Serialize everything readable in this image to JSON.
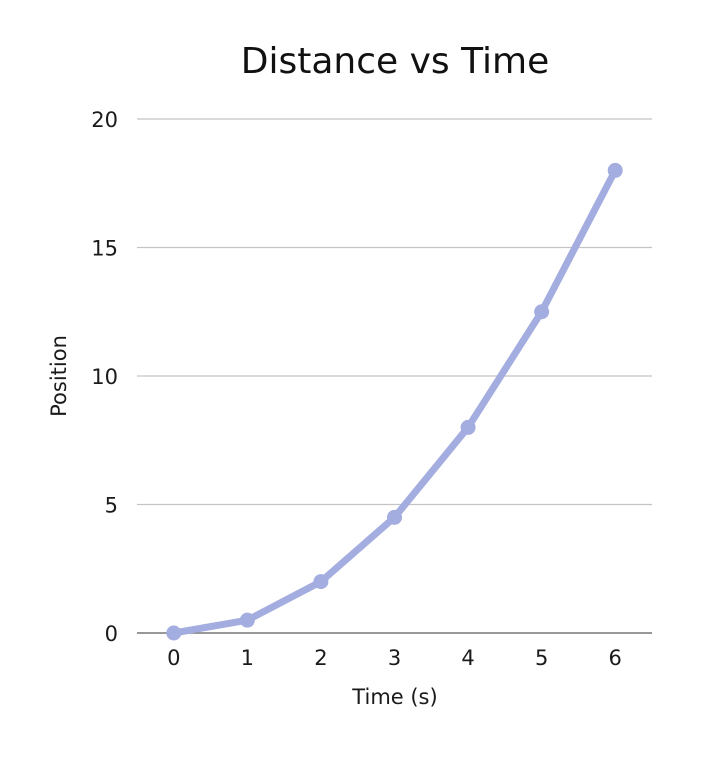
{
  "chart_data": {
    "type": "line",
    "title": "Distance vs Time",
    "xlabel": "Time (s)",
    "ylabel": "Position",
    "x": [
      0,
      1,
      2,
      3,
      4,
      5,
      6
    ],
    "series": [
      {
        "values": [
          0,
          0.5,
          2,
          4.5,
          8,
          12.5,
          18
        ]
      }
    ],
    "xlim": [
      -0.5,
      6.5
    ],
    "ylim": [
      0,
      20
    ],
    "xticks": [
      "0",
      "1",
      "2",
      "3",
      "4",
      "5",
      "6"
    ],
    "yticks": [
      "0",
      "5",
      "10",
      "15",
      "20"
    ],
    "ytick_values": [
      0,
      5,
      10,
      15,
      20
    ],
    "grid": true,
    "legend": "none",
    "colors": {
      "series": "#a4addf",
      "grid": "#c4c4c4",
      "axis": "#777777",
      "text": "#1a1a1a"
    }
  }
}
